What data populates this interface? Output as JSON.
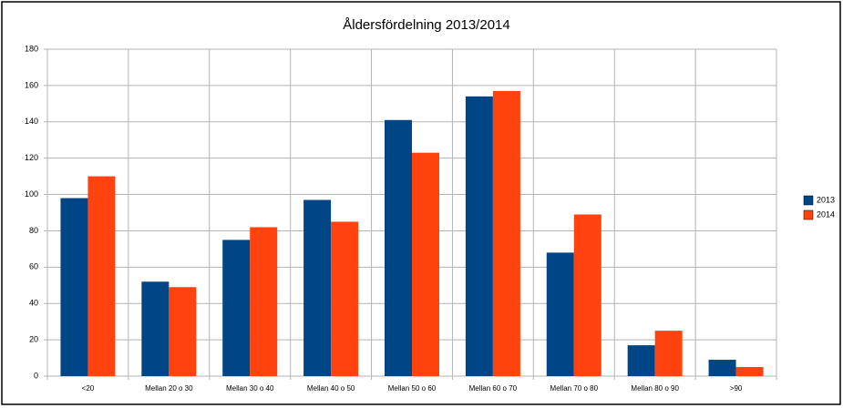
{
  "chart_data": {
    "type": "bar",
    "title": "Åldersfördelning 2013/2014",
    "categories": [
      "<20",
      "Mellan 20 o 30",
      "Mellan 30 o 40",
      "Mellan 40 o 50",
      "Mellan 50 o 60",
      "Mellan 60 o 70",
      "Mellan 70 o 80",
      "Mellan 80 o 90",
      ">90"
    ],
    "series": [
      {
        "name": "2013",
        "color": "#004586",
        "values": [
          98,
          52,
          75,
          97,
          141,
          154,
          68,
          17,
          9
        ]
      },
      {
        "name": "2014",
        "color": "#ff420e",
        "values": [
          110,
          49,
          82,
          85,
          123,
          157,
          89,
          25,
          5
        ]
      }
    ],
    "ylim": [
      0,
      180
    ],
    "yticks": [
      0,
      20,
      40,
      60,
      80,
      100,
      120,
      140,
      160,
      180
    ],
    "grid": true,
    "legend": "right"
  }
}
